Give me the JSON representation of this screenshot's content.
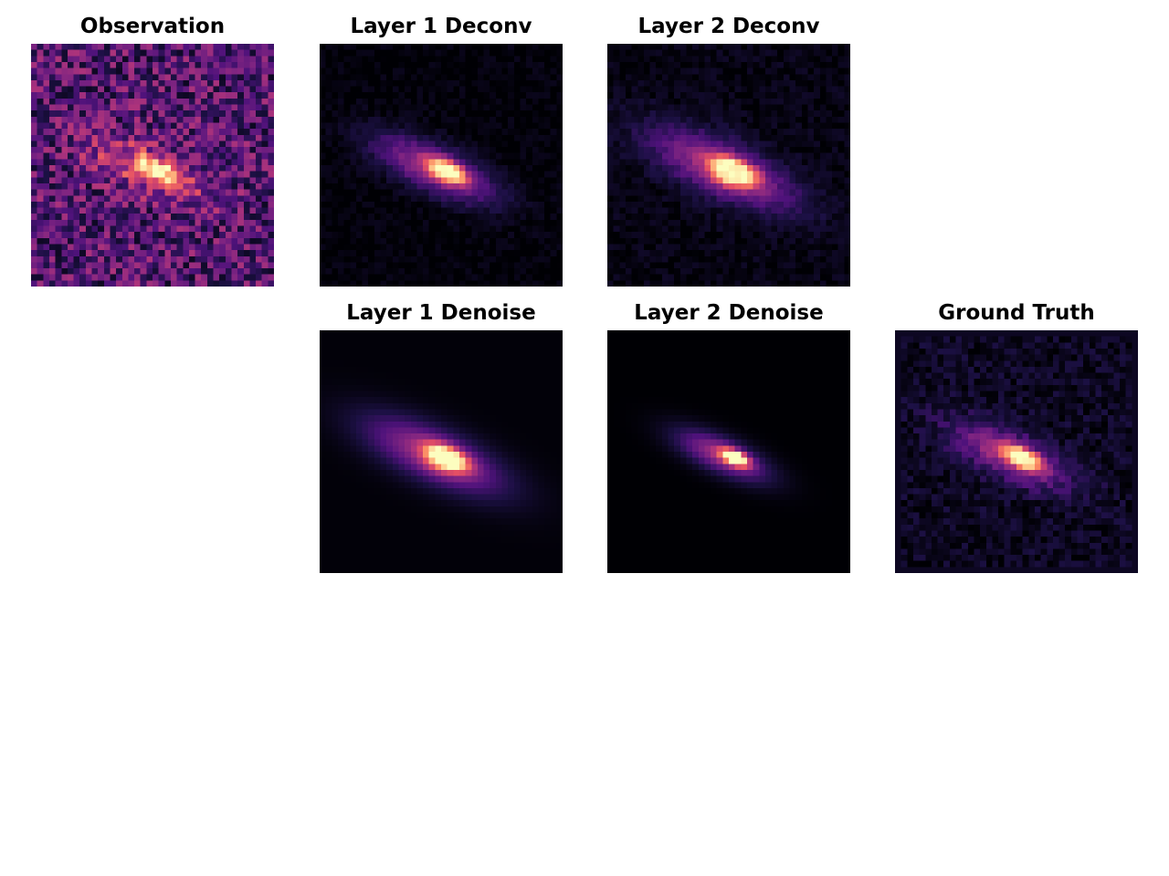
{
  "panels": [
    {
      "id": "observation",
      "title": "Observation",
      "noise": 0.42,
      "floor": 0.27,
      "core": 1.0,
      "spread": 1.0,
      "extra_core": 0.0,
      "frame": false
    },
    {
      "id": "layer1-deconv",
      "title": "Layer 1 Deconv",
      "noise": 0.08,
      "floor": 0.01,
      "core": 1.0,
      "spread": 1.0,
      "extra_core": 0.0,
      "frame": false
    },
    {
      "id": "layer2-deconv",
      "title": "Layer 2 Deconv",
      "noise": 0.09,
      "floor": 0.03,
      "core": 1.0,
      "spread": 1.2,
      "extra_core": 0.25,
      "frame": false
    },
    {
      "id": "layer1-denoise",
      "title": "Layer 1 Denoise",
      "noise": 0.0,
      "floor": 0.01,
      "core": 1.0,
      "spread": 1.15,
      "extra_core": 0.15,
      "frame": false
    },
    {
      "id": "layer2-denoise",
      "title": "Layer 2 Denoise",
      "noise": 0.0,
      "floor": 0.0,
      "core": 1.0,
      "spread": 0.75,
      "extra_core": 0.0,
      "frame": false
    },
    {
      "id": "ground-truth",
      "title": "Ground Truth",
      "noise": 0.14,
      "floor": 0.06,
      "core": 1.0,
      "spread": 0.95,
      "extra_core": 0.0,
      "frame": true
    }
  ],
  "colormap": "magma"
}
